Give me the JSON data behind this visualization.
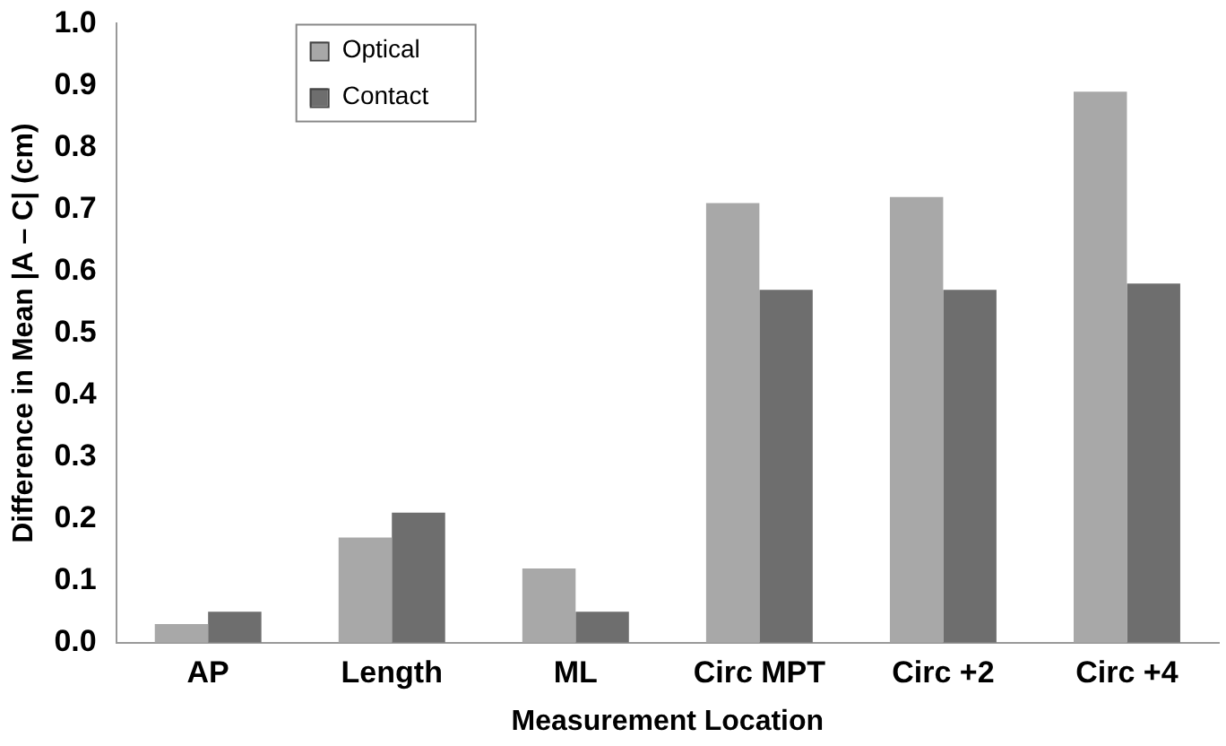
{
  "chart_data": {
    "type": "bar",
    "xlabel": "Measurement Location",
    "ylabel": "Difference in Mean |A – C| (cm)",
    "categories": [
      "AP",
      "Length",
      "ML",
      "Circ MPT",
      "Circ +2",
      "Circ +4"
    ],
    "series": [
      {
        "name": "Optical",
        "color": "#a8a8a8",
        "values": [
          0.03,
          0.17,
          0.12,
          0.71,
          0.72,
          0.89
        ]
      },
      {
        "name": "Contact",
        "color": "#6e6e6e",
        "values": [
          0.05,
          0.21,
          0.05,
          0.57,
          0.57,
          0.58
        ]
      }
    ],
    "ylim": [
      0,
      1
    ],
    "yticks": [
      {
        "value": 0,
        "label": "0.0"
      },
      {
        "value": 0.1,
        "label": "0.1"
      },
      {
        "value": 0.2,
        "label": "0.2"
      },
      {
        "value": 0.3,
        "label": "0.3"
      },
      {
        "value": 0.4,
        "label": "0.4"
      },
      {
        "value": 0.5,
        "label": "0.5"
      },
      {
        "value": 0.6,
        "label": "0.6"
      },
      {
        "value": 0.7,
        "label": "0.7"
      },
      {
        "value": 0.8,
        "label": "0.8"
      },
      {
        "value": 0.9,
        "label": "0.9"
      },
      {
        "value": 1,
        "label": "1.0"
      }
    ],
    "grid": false,
    "legend": "top left"
  }
}
